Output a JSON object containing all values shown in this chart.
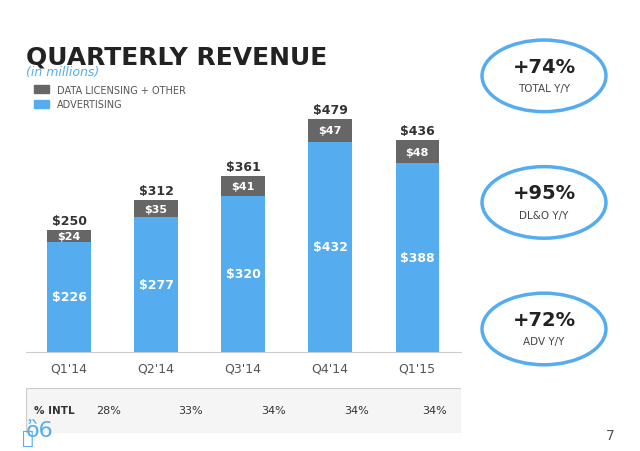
{
  "title": "QUARTERLY REVENUE",
  "subtitle": "(in millions)",
  "categories": [
    "Q1'14",
    "Q2'14",
    "Q3'14",
    "Q4'14",
    "Q1'15"
  ],
  "advertising": [
    226,
    277,
    320,
    432,
    388
  ],
  "data_licensing": [
    24,
    35,
    41,
    47,
    48
  ],
  "totals": [
    250,
    312,
    361,
    479,
    436
  ],
  "intl_pct": [
    "28%",
    "33%",
    "34%",
    "34%",
    "34%"
  ],
  "adv_color": "#55ACEE",
  "dl_color": "#666666",
  "background_color": "#ffffff",
  "circle_stats": [
    {
      "value": "+74%",
      "label": "TOTAL Y/Y"
    },
    {
      "value": "+95%",
      "label": "DL&O Y/Y"
    },
    {
      "value": "+72%",
      "label": "ADV Y/Y"
    }
  ],
  "circle_color": "#55ACEE",
  "twitter_bird_color": "#55ACEE",
  "page_number": "7"
}
